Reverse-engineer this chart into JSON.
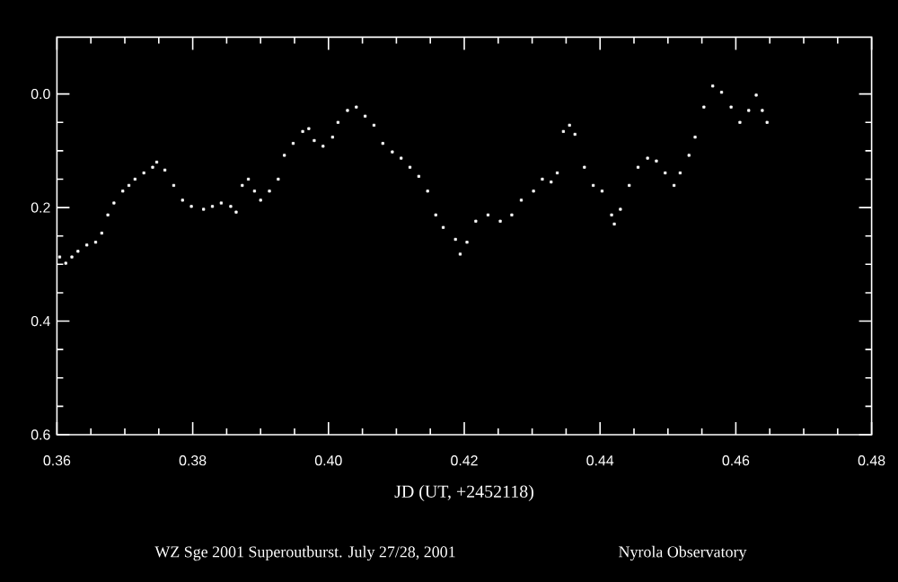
{
  "chart_data": {
    "type": "scatter",
    "xlabel": "JD (UT, +2452118)",
    "annotations": [
      "WZ Sge 2001 Superoutburst. July 27/28, 2001",
      "Nyrola Observatory"
    ],
    "xlim": [
      0.36,
      0.48
    ],
    "ylim": [
      0.6,
      -0.1
    ],
    "xticks": [
      {
        "value": 0.36,
        "label": "0.36"
      },
      {
        "value": 0.38,
        "label": "0.38"
      },
      {
        "value": 0.4,
        "label": "0.40"
      },
      {
        "value": 0.42,
        "label": "0.42"
      },
      {
        "value": 0.44,
        "label": "0.44"
      },
      {
        "value": 0.46,
        "label": "0.46"
      },
      {
        "value": 0.48,
        "label": "0.48"
      }
    ],
    "yticks": [
      {
        "value": 0.0,
        "label": "0.0"
      },
      {
        "value": 0.2,
        "label": "0.2"
      },
      {
        "value": 0.4,
        "label": "0.4"
      },
      {
        "value": 0.6,
        "label": "0.6"
      }
    ],
    "marker": "square",
    "series": [
      {
        "color": "#ffffff",
        "x": [
          0.3604,
          0.3613,
          0.3622,
          0.3631,
          0.3644,
          0.3657,
          0.3666,
          0.3675,
          0.3684,
          0.3697,
          0.3706,
          0.3715,
          0.3728,
          0.3741,
          0.3747,
          0.3759,
          0.3772,
          0.3785,
          0.3798,
          0.3816,
          0.3829,
          0.3842,
          0.3856,
          0.3864,
          0.3873,
          0.3882,
          0.3891,
          0.39,
          0.3913,
          0.3926,
          0.3935,
          0.3948,
          0.3962,
          0.3971,
          0.3979,
          0.3992,
          0.4006,
          0.4014,
          0.4028,
          0.4041,
          0.4054,
          0.4067,
          0.408,
          0.4094,
          0.4107,
          0.412,
          0.4133,
          0.4146,
          0.4158,
          0.4169,
          0.4187,
          0.4194,
          0.4204,
          0.4217,
          0.4235,
          0.4253,
          0.427,
          0.4284,
          0.4302,
          0.4315,
          0.4328,
          0.4337,
          0.4346,
          0.4355,
          0.4363,
          0.4377,
          0.439,
          0.4403,
          0.4417,
          0.4421,
          0.443,
          0.4443,
          0.4456,
          0.447,
          0.4483,
          0.4496,
          0.4509,
          0.4518,
          0.4531,
          0.454,
          0.4553,
          0.4566,
          0.4579,
          0.4593,
          0.4606,
          0.4619,
          0.463,
          0.4639,
          0.4646
        ],
        "values": [
          0.287,
          0.298,
          0.287,
          0.277,
          0.266,
          0.261,
          0.245,
          0.213,
          0.192,
          0.171,
          0.161,
          0.15,
          0.139,
          0.129,
          0.12,
          0.134,
          0.161,
          0.187,
          0.198,
          0.203,
          0.198,
          0.192,
          0.198,
          0.208,
          0.161,
          0.15,
          0.171,
          0.187,
          0.171,
          0.15,
          0.108,
          0.087,
          0.066,
          0.061,
          0.082,
          0.092,
          0.076,
          0.05,
          0.029,
          0.023,
          0.039,
          0.055,
          0.087,
          0.102,
          0.113,
          0.129,
          0.145,
          0.171,
          0.213,
          0.235,
          0.256,
          0.282,
          0.261,
          0.224,
          0.213,
          0.224,
          0.213,
          0.187,
          0.171,
          0.15,
          0.155,
          0.139,
          0.066,
          0.055,
          0.071,
          0.129,
          0.161,
          0.171,
          0.213,
          0.229,
          0.203,
          0.161,
          0.129,
          0.113,
          0.118,
          0.139,
          0.161,
          0.139,
          0.108,
          0.076,
          0.023,
          -0.014,
          -0.003,
          0.023,
          0.05,
          0.029,
          0.002,
          0.029,
          0.05
        ]
      }
    ]
  }
}
